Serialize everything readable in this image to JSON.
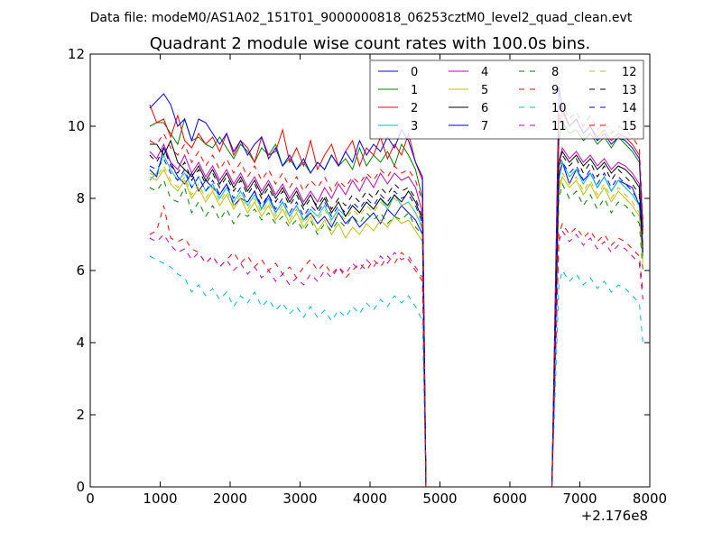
{
  "suptitle": "Data file: modeM0/AS1A02_151T01_9000000818_06253cztM0_level2_quad_clean.evt",
  "chart_data": {
    "type": "line",
    "title": "Quadrant 2 module wise count rates with 100.0s bins.",
    "xlabel": "",
    "ylabel": "",
    "x_offset_label": "+2.176e8",
    "xlim": [
      0,
      8000
    ],
    "ylim": [
      0,
      12
    ],
    "xticks": [
      0,
      1000,
      2000,
      3000,
      4000,
      5000,
      6000,
      7000,
      8000
    ],
    "yticks": [
      0,
      2,
      4,
      6,
      8,
      10,
      12
    ],
    "legend": {
      "position": "top-right",
      "columns": 4
    },
    "x": [
      850,
      950,
      1050,
      1150,
      1250,
      1350,
      1450,
      1550,
      1650,
      1750,
      1850,
      1950,
      2050,
      2150,
      2250,
      2350,
      2450,
      2550,
      2650,
      2750,
      2850,
      2950,
      3050,
      3150,
      3250,
      3350,
      3450,
      3550,
      3650,
      3750,
      3850,
      3950,
      4050,
      4150,
      4250,
      4350,
      4450,
      4550,
      4650,
      4750,
      4800,
      6600,
      6700,
      6750,
      6850,
      6950,
      7050,
      7150,
      7250,
      7350,
      7450,
      7550,
      7650,
      7750,
      7850,
      7900
    ],
    "series": [
      {
        "name": "0",
        "color": "#0000ff",
        "dash": "solid",
        "values": [
          8.8,
          8.6,
          9.4,
          9.0,
          8.6,
          8.4,
          8.7,
          8.2,
          8.5,
          8.3,
          8.1,
          8.4,
          7.8,
          8.0,
          7.9,
          8.2,
          7.7,
          8.1,
          7.6,
          7.9,
          7.5,
          7.8,
          7.4,
          7.6,
          7.3,
          7.5,
          7.2,
          7.6,
          7.3,
          7.5,
          7.2,
          7.4,
          7.6,
          7.3,
          7.7,
          7.5,
          7.8,
          7.6,
          7.4,
          7.0,
          0,
          0,
          8.6,
          9.0,
          8.4,
          8.8,
          8.5,
          8.7,
          8.3,
          8.6,
          8.2,
          8.5,
          8.4,
          8.3,
          7.8,
          6.4
        ]
      },
      {
        "name": "1",
        "color": "#008000",
        "dash": "solid",
        "values": [
          10.0,
          10.1,
          10.1,
          9.8,
          9.5,
          10.2,
          9.6,
          9.7,
          9.5,
          9.4,
          9.7,
          9.4,
          9.1,
          9.5,
          9.3,
          9.0,
          9.4,
          9.2,
          9.5,
          8.9,
          9.1,
          8.8,
          9.0,
          8.7,
          9.0,
          8.8,
          9.2,
          8.9,
          9.1,
          8.8,
          9.4,
          8.9,
          9.2,
          9.0,
          9.3,
          8.9,
          9.5,
          9.2,
          8.8,
          8.0,
          0,
          0,
          9.6,
          10.1,
          9.8,
          9.9,
          9.6,
          9.8,
          9.5,
          9.7,
          9.4,
          9.7,
          9.5,
          9.3,
          9.0,
          7.0
        ]
      },
      {
        "name": "2",
        "color": "#ff0000",
        "dash": "solid",
        "values": [
          10.6,
          10.1,
          10.2,
          9.7,
          10.3,
          9.6,
          9.4,
          9.8,
          9.5,
          9.7,
          9.3,
          9.8,
          9.2,
          9.6,
          9.4,
          9.0,
          9.7,
          9.2,
          9.3,
          9.9,
          9.0,
          9.4,
          8.9,
          9.6,
          8.8,
          9.2,
          9.5,
          8.9,
          9.3,
          9.6,
          8.9,
          9.4,
          9.2,
          9.7,
          9.1,
          9.5,
          9.2,
          9.8,
          9.0,
          8.5,
          0,
          0,
          10.1,
          10.4,
          10.0,
          10.2,
          9.8,
          10.0,
          9.7,
          9.9,
          9.6,
          9.8,
          9.7,
          9.5,
          9.2,
          7.1
        ]
      },
      {
        "name": "3",
        "color": "#00bfbf",
        "dash": "solid",
        "values": [
          8.5,
          8.7,
          9.2,
          8.8,
          8.5,
          8.7,
          8.3,
          8.6,
          8.2,
          8.4,
          8.0,
          8.3,
          7.9,
          8.2,
          7.8,
          8.1,
          7.7,
          8.0,
          7.6,
          7.9,
          7.5,
          7.8,
          7.4,
          7.7,
          7.5,
          7.8,
          7.4,
          7.7,
          7.5,
          7.8,
          7.6,
          7.9,
          7.7,
          8.0,
          7.7,
          8.1,
          7.8,
          7.9,
          7.6,
          7.2,
          0,
          0,
          8.5,
          9.0,
          8.6,
          8.8,
          8.4,
          8.7,
          8.3,
          8.6,
          8.2,
          8.5,
          8.3,
          8.1,
          7.8,
          6.6
        ]
      },
      {
        "name": "4",
        "color": "#bf00bf",
        "dash": "solid",
        "values": [
          9.3,
          9.1,
          9.5,
          9.0,
          8.8,
          9.2,
          8.7,
          9.0,
          8.6,
          8.9,
          8.5,
          8.8,
          8.4,
          8.7,
          8.3,
          8.6,
          8.2,
          8.5,
          8.1,
          8.4,
          8.0,
          8.3,
          7.9,
          8.2,
          7.9,
          8.3,
          8.0,
          8.4,
          8.1,
          8.5,
          8.2,
          8.6,
          8.3,
          8.7,
          8.4,
          8.7,
          8.5,
          8.6,
          8.3,
          7.6,
          0,
          0,
          9.0,
          9.4,
          9.1,
          9.3,
          9.0,
          9.2,
          8.9,
          9.1,
          8.8,
          9.0,
          8.9,
          8.7,
          8.4,
          6.7
        ]
      },
      {
        "name": "5",
        "color": "#bfbf00",
        "dash": "solid",
        "values": [
          8.6,
          8.5,
          8.8,
          8.4,
          8.2,
          8.5,
          8.0,
          8.3,
          7.9,
          8.2,
          7.8,
          8.1,
          7.7,
          8.0,
          7.6,
          7.9,
          7.5,
          7.8,
          7.4,
          7.7,
          7.3,
          7.6,
          7.2,
          7.5,
          7.1,
          7.4,
          7.0,
          7.3,
          6.9,
          7.2,
          7.0,
          7.3,
          7.1,
          7.4,
          7.2,
          7.5,
          7.3,
          7.4,
          7.1,
          6.8,
          0,
          0,
          8.2,
          8.6,
          8.3,
          8.5,
          8.1,
          8.4,
          8.0,
          8.3,
          7.9,
          8.2,
          8.0,
          7.8,
          7.5,
          6.2
        ]
      },
      {
        "name": "6",
        "color": "#000000",
        "dash": "solid",
        "values": [
          9.5,
          9.5,
          9.2,
          9.6,
          9.0,
          8.8,
          8.6,
          8.9,
          8.5,
          8.8,
          8.4,
          8.7,
          8.3,
          8.6,
          8.2,
          8.5,
          8.1,
          8.4,
          8.0,
          8.3,
          7.9,
          8.2,
          7.8,
          8.1,
          7.7,
          8.0,
          7.6,
          7.9,
          7.5,
          7.8,
          7.6,
          7.9,
          7.7,
          8.0,
          7.8,
          8.1,
          7.9,
          8.2,
          7.9,
          7.4,
          0,
          0,
          9.0,
          9.3,
          9.0,
          9.2,
          8.9,
          9.1,
          8.8,
          9.0,
          8.7,
          8.9,
          8.8,
          8.6,
          8.3,
          6.5
        ]
      },
      {
        "name": "7",
        "color": "#0000ff",
        "dash": "solid",
        "values": [
          10.5,
          10.7,
          10.9,
          10.6,
          10.0,
          10.2,
          9.6,
          10.2,
          10.1,
          9.8,
          9.5,
          9.8,
          9.3,
          9.6,
          9.2,
          9.5,
          9.7,
          9.1,
          9.4,
          8.9,
          9.2,
          8.8,
          9.1,
          8.7,
          9.0,
          8.8,
          9.2,
          8.9,
          9.3,
          9.0,
          9.6,
          9.2,
          9.5,
          9.3,
          9.7,
          9.4,
          9.9,
          9.6,
          9.0,
          8.6,
          0,
          0,
          11.1,
          10.5,
          10.0,
          10.2,
          9.8,
          10.0,
          9.6,
          9.8,
          9.5,
          9.7,
          9.6,
          9.4,
          9.1,
          7.2
        ]
      },
      {
        "name": "8",
        "color": "#008000",
        "dash": "dashed",
        "values": [
          8.3,
          8.2,
          8.5,
          8.0,
          7.9,
          8.3,
          7.6,
          7.9,
          7.5,
          7.8,
          7.4,
          7.7,
          7.3,
          7.6,
          7.5,
          7.7,
          7.4,
          7.6,
          7.3,
          7.5,
          7.2,
          7.4,
          7.1,
          7.4,
          7.0,
          7.3,
          7.1,
          7.4,
          7.2,
          7.5,
          7.3,
          7.6,
          7.4,
          7.6,
          7.3,
          7.5,
          7.4,
          7.6,
          7.2,
          7.0,
          0,
          0,
          8.0,
          8.4,
          8.0,
          8.2,
          7.8,
          8.1,
          7.7,
          8.0,
          7.6,
          7.9,
          7.8,
          7.6,
          7.3,
          6.0
        ]
      },
      {
        "name": "9",
        "color": "#ff0000",
        "dash": "dashed",
        "values": [
          7.0,
          7.1,
          7.8,
          6.9,
          6.8,
          6.9,
          6.6,
          6.5,
          6.2,
          6.4,
          6.1,
          6.3,
          6.5,
          6.2,
          6.4,
          6.1,
          6.3,
          6.0,
          6.2,
          5.9,
          6.1,
          5.8,
          6.1,
          6.3,
          6.0,
          6.2,
          5.9,
          6.1,
          5.8,
          6.0,
          6.2,
          6.0,
          6.3,
          6.1,
          6.4,
          6.2,
          6.5,
          6.3,
          6.0,
          5.7,
          0,
          0,
          7.0,
          7.3,
          7.0,
          7.2,
          6.9,
          7.1,
          6.8,
          7.0,
          6.7,
          6.9,
          6.8,
          6.6,
          6.4,
          5.4
        ]
      },
      {
        "name": "10",
        "color": "#00bfbf",
        "dash": "dashed",
        "values": [
          6.4,
          6.3,
          6.2,
          6.1,
          5.9,
          5.8,
          5.4,
          5.6,
          5.3,
          5.5,
          5.2,
          5.4,
          5.0,
          5.3,
          5.1,
          5.4,
          5.0,
          5.2,
          4.9,
          5.1,
          4.8,
          5.0,
          4.7,
          5.0,
          4.7,
          4.9,
          4.6,
          4.9,
          4.7,
          5.0,
          4.8,
          5.1,
          4.9,
          5.2,
          5.0,
          5.3,
          5.1,
          5.3,
          5.0,
          4.6,
          0,
          0,
          5.6,
          6.0,
          5.7,
          5.9,
          5.6,
          5.8,
          5.5,
          5.7,
          5.4,
          5.6,
          5.5,
          5.3,
          5.1,
          4.0
        ]
      },
      {
        "name": "11",
        "color": "#bf00bf",
        "dash": "dashed",
        "values": [
          6.9,
          6.8,
          7.0,
          6.7,
          6.5,
          6.6,
          6.3,
          6.5,
          6.2,
          6.4,
          6.1,
          6.3,
          6.0,
          6.2,
          5.9,
          6.1,
          5.8,
          6.0,
          5.7,
          5.9,
          5.6,
          5.8,
          5.6,
          5.9,
          5.7,
          6.0,
          5.8,
          6.1,
          5.9,
          6.2,
          6.0,
          6.3,
          6.1,
          6.4,
          6.2,
          6.5,
          6.3,
          6.4,
          6.1,
          5.8,
          0,
          0,
          6.8,
          7.1,
          6.8,
          7.0,
          6.7,
          6.9,
          6.6,
          6.8,
          6.5,
          6.7,
          6.6,
          6.4,
          6.2,
          5.2
        ]
      },
      {
        "name": "12",
        "color": "#bfbf00",
        "dash": "dashed",
        "values": [
          8.7,
          8.6,
          8.9,
          8.5,
          8.3,
          8.6,
          8.1,
          8.4,
          8.0,
          8.3,
          7.9,
          8.2,
          7.8,
          8.1,
          7.7,
          8.0,
          7.6,
          7.9,
          7.5,
          7.8,
          7.4,
          7.7,
          7.3,
          7.6,
          7.4,
          7.7,
          7.3,
          7.6,
          7.4,
          7.7,
          7.5,
          7.8,
          7.6,
          7.9,
          7.7,
          8.0,
          7.8,
          7.9,
          7.6,
          7.1,
          0,
          0,
          8.3,
          8.7,
          8.4,
          8.6,
          8.2,
          8.5,
          8.1,
          8.4,
          8.0,
          8.3,
          8.1,
          7.9,
          7.6,
          6.3
        ]
      },
      {
        "name": "13",
        "color": "#000000",
        "dash": "dashed",
        "values": [
          9.2,
          9.0,
          9.4,
          8.9,
          8.7,
          9.0,
          8.5,
          8.8,
          8.4,
          8.7,
          8.3,
          8.6,
          8.2,
          8.5,
          8.1,
          8.4,
          8.0,
          8.3,
          7.9,
          8.2,
          7.8,
          8.1,
          7.7,
          8.0,
          7.8,
          8.1,
          7.7,
          8.0,
          7.8,
          8.1,
          7.9,
          8.2,
          8.0,
          8.3,
          8.1,
          8.4,
          8.2,
          8.3,
          8.0,
          7.5,
          0,
          0,
          8.8,
          9.2,
          8.9,
          9.1,
          8.7,
          9.0,
          8.6,
          8.9,
          8.5,
          8.8,
          8.6,
          8.4,
          8.1,
          6.6
        ]
      },
      {
        "name": "14",
        "color": "#0000ff",
        "dash": "dashed",
        "values": [
          8.9,
          8.8,
          9.1,
          8.7,
          8.5,
          8.8,
          8.3,
          8.6,
          8.2,
          8.5,
          8.1,
          8.4,
          8.0,
          8.3,
          7.9,
          8.2,
          7.8,
          8.1,
          7.7,
          8.0,
          7.6,
          7.9,
          7.5,
          7.8,
          7.6,
          7.9,
          7.5,
          7.8,
          7.6,
          7.9,
          7.7,
          8.0,
          7.8,
          8.1,
          7.9,
          8.2,
          8.0,
          8.1,
          7.8,
          7.3,
          0,
          0,
          8.6,
          9.0,
          8.7,
          8.9,
          8.5,
          8.8,
          8.4,
          8.7,
          8.3,
          8.6,
          8.4,
          8.2,
          7.9,
          6.5
        ]
      },
      {
        "name": "15",
        "color": "#ff0000",
        "dash": "dashed",
        "values": [
          9.6,
          9.5,
          9.8,
          9.4,
          9.2,
          9.5,
          9.0,
          9.3,
          8.9,
          9.2,
          8.8,
          9.1,
          8.7,
          9.0,
          8.6,
          8.9,
          8.5,
          8.8,
          8.4,
          8.7,
          8.3,
          8.6,
          8.2,
          8.5,
          8.3,
          8.6,
          8.2,
          8.5,
          8.3,
          8.6,
          8.4,
          8.7,
          8.5,
          8.8,
          8.6,
          8.9,
          8.7,
          8.8,
          8.5,
          7.9,
          0,
          0,
          10.3,
          10.6,
          10.2,
          10.4,
          10.0,
          10.3,
          9.9,
          10.1,
          9.8,
          10.0,
          9.9,
          9.7,
          9.4,
          7.4
        ]
      }
    ]
  }
}
